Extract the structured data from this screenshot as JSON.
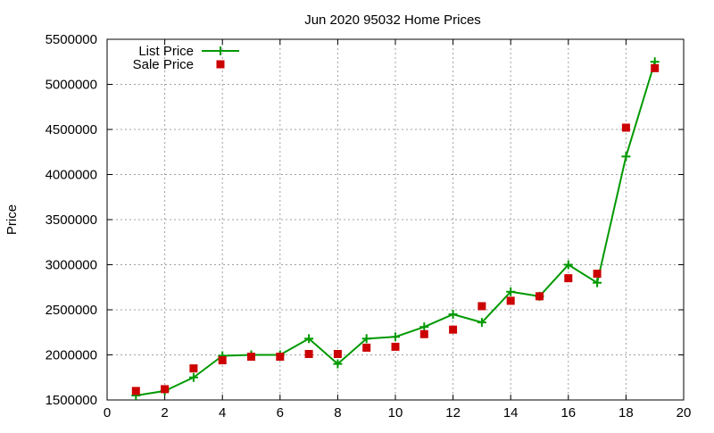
{
  "chart_data": {
    "type": "line",
    "title": "Jun 2020 95032 Home Prices",
    "xlabel": "",
    "ylabel": "Price",
    "xlim": [
      0,
      20
    ],
    "ylim": [
      1500000,
      5500000
    ],
    "x_ticks": [
      0,
      2,
      4,
      6,
      8,
      10,
      12,
      14,
      16,
      18,
      20
    ],
    "x_tick_labels": [
      "0",
      "2",
      "4",
      "6",
      "8",
      "10",
      "12",
      "14",
      "16",
      "18",
      "20"
    ],
    "y_ticks": [
      1500000,
      2000000,
      2500000,
      3000000,
      3500000,
      4000000,
      4500000,
      5000000,
      5500000
    ],
    "y_tick_labels": [
      "1500000",
      "2000000",
      "2500000",
      "3000000",
      "3500000",
      "4000000",
      "4500000",
      "5000000",
      "5500000"
    ],
    "grid": true,
    "legend_position": "top-left",
    "series": [
      {
        "name": "List Price",
        "style": "line-with-plus-markers",
        "color": "#009900",
        "x": [
          1,
          2,
          3,
          4,
          5,
          6,
          7,
          8,
          9,
          10,
          11,
          12,
          13,
          14,
          15,
          16,
          17,
          18,
          19
        ],
        "values": [
          1550000,
          1600000,
          1750000,
          1990000,
          2000000,
          2000000,
          2180000,
          1900000,
          2180000,
          2200000,
          2310000,
          2450000,
          2360000,
          2700000,
          2650000,
          3000000,
          2800000,
          4200000,
          5250000
        ]
      },
      {
        "name": "Sale Price",
        "style": "square-markers",
        "color": "#cc0000",
        "x": [
          1,
          2,
          3,
          4,
          5,
          6,
          7,
          8,
          9,
          10,
          11,
          12,
          13,
          14,
          15,
          16,
          17,
          18,
          19
        ],
        "values": [
          1600000,
          1620000,
          1850000,
          1940000,
          1980000,
          1980000,
          2010000,
          2010000,
          2080000,
          2090000,
          2230000,
          2280000,
          2540000,
          2600000,
          2650000,
          2850000,
          2900000,
          4520000,
          5180000
        ]
      }
    ]
  }
}
